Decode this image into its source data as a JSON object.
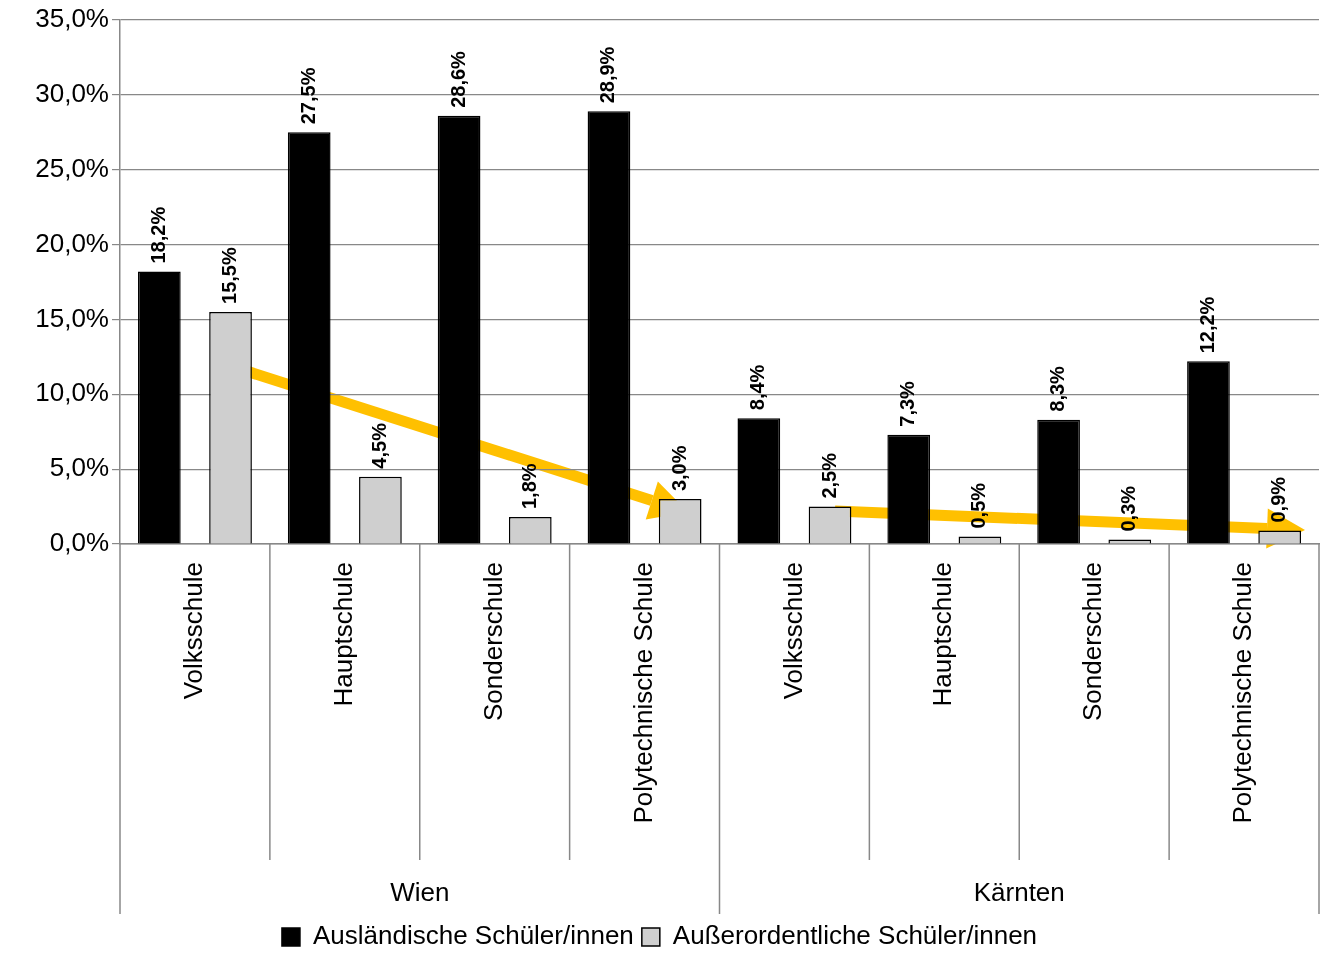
{
  "chart_data": {
    "type": "bar",
    "categories": [
      "Volksschule",
      "Hauptschule",
      "Sonderschule",
      "Polytechnische Schule",
      "Volksschule",
      "Hauptschule",
      "Sonderschule",
      "Polytechnische Schule"
    ],
    "series": [
      {
        "name": "Ausländische Schüler/innen",
        "color": "#000000",
        "values": [
          18.2,
          27.5,
          28.6,
          28.9,
          8.4,
          7.3,
          8.3,
          12.2
        ],
        "value_labels": [
          "18,2%",
          "27,5%",
          "28,6%",
          "28,9%",
          "8,4%",
          "7,3%",
          "8,3%",
          "12,2%"
        ]
      },
      {
        "name": "Außerordentliche Schüler/innen",
        "color": "#cfcfcf",
        "values": [
          15.5,
          4.5,
          1.8,
          3.0,
          2.5,
          0.5,
          0.3,
          0.9
        ],
        "value_labels": [
          "15,5%",
          "4,5%",
          "1,8%",
          "3,0%",
          "2,5%",
          "0,5%",
          "0,3%",
          "0,9%"
        ]
      }
    ],
    "ylim": [
      0,
      35
    ],
    "yticks": [
      {
        "value": 0,
        "label": "0,0%"
      },
      {
        "value": 5,
        "label": "5,0%"
      },
      {
        "value": 10,
        "label": "10,0%"
      },
      {
        "value": 15,
        "label": "15,0%"
      },
      {
        "value": 20,
        "label": "20,0%"
      },
      {
        "value": 25,
        "label": "25,0%"
      },
      {
        "value": 30,
        "label": "30,0%"
      },
      {
        "value": 35,
        "label": "35,0%"
      }
    ],
    "annotations": [
      "Wien",
      "Kärnten"
    ],
    "grid": "y",
    "legend": "bottom"
  }
}
